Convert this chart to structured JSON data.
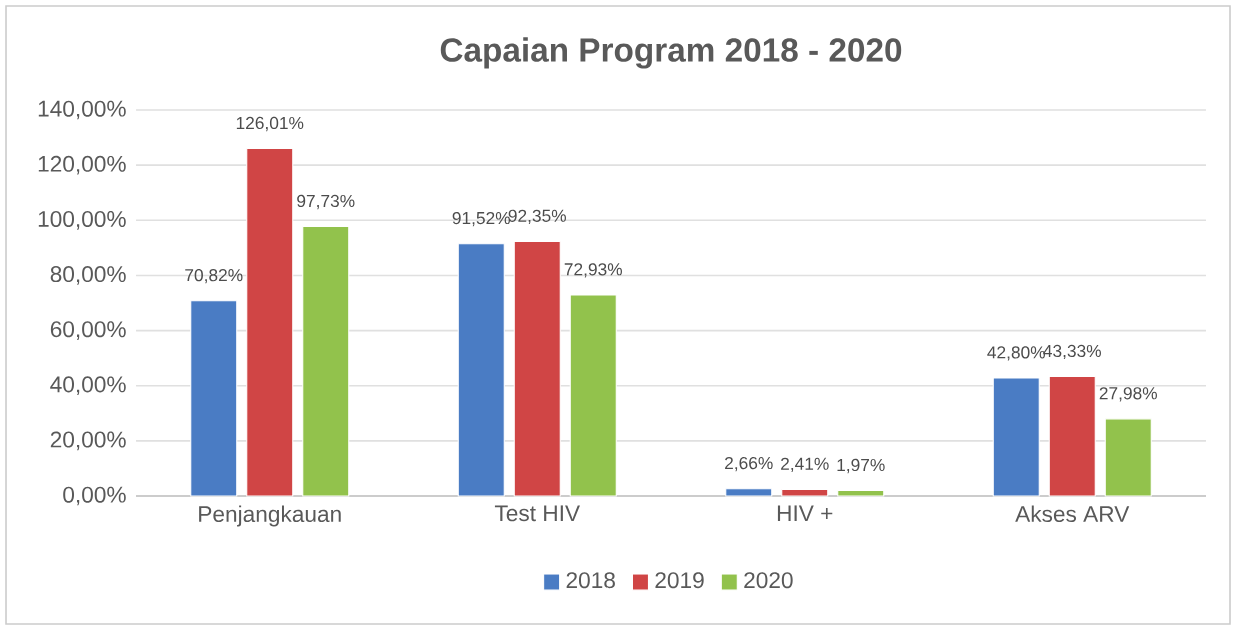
{
  "chart_data": {
    "type": "bar",
    "title": "Capaian Program 2018 - 2020",
    "categories": [
      "Penjangkauan",
      "Test HIV",
      "HIV +",
      "Akses ARV"
    ],
    "series": [
      {
        "name": "2018",
        "color": "#4a7cc4",
        "values": [
          70.82,
          91.52,
          2.66,
          42.8
        ],
        "value_labels": [
          "70,82%",
          "91,52%",
          "2,66%",
          "42,80%"
        ]
      },
      {
        "name": "2019",
        "color": "#d04545",
        "values": [
          126.01,
          92.35,
          2.41,
          43.33
        ],
        "value_labels": [
          "126,01%",
          "92,35%",
          "2,41%",
          "43,33%"
        ]
      },
      {
        "name": "2020",
        "color": "#92c24c",
        "values": [
          97.73,
          72.93,
          1.97,
          27.98
        ],
        "value_labels": [
          "97,73%",
          "72,93%",
          "1,97%",
          "27,98%"
        ]
      }
    ],
    "ylim": [
      0,
      140
    ],
    "yticks": [
      {
        "value": 0,
        "label": "0,00%"
      },
      {
        "value": 20,
        "label": "20,00%"
      },
      {
        "value": 40,
        "label": "40,00%"
      },
      {
        "value": 60,
        "label": "60,00%"
      },
      {
        "value": 80,
        "label": "80,00%"
      },
      {
        "value": 100,
        "label": "100,00%"
      },
      {
        "value": 120,
        "label": "120,00%"
      },
      {
        "value": 140,
        "label": "140,00%"
      }
    ],
    "grid": "y",
    "legend": "bottom"
  }
}
